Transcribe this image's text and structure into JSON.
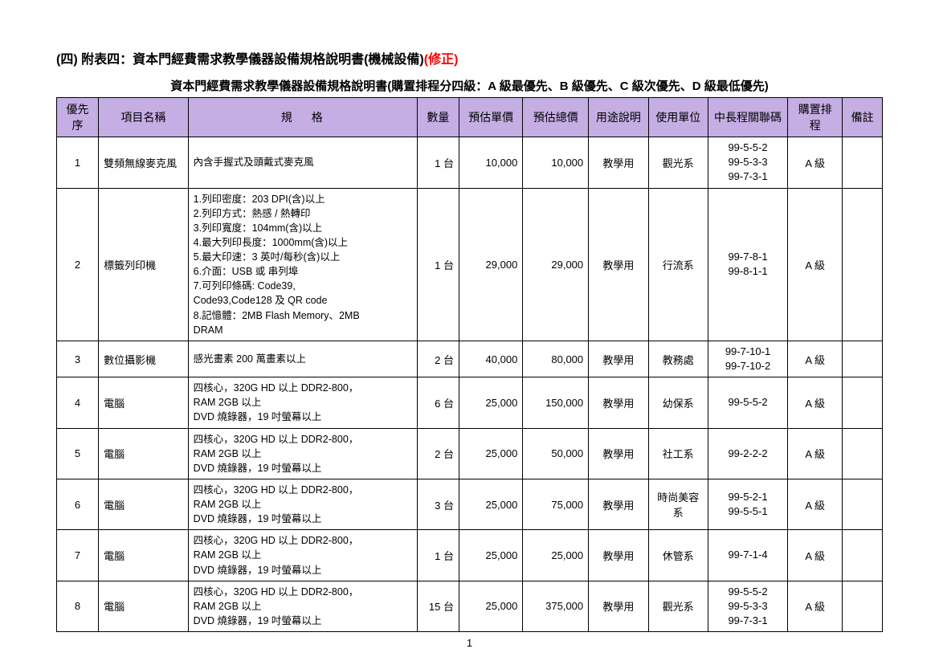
{
  "header": {
    "prefix": "(四) 附表四：資本門經費需求教學儀器設備規格說明書(機械設備)",
    "correction": "(修正)"
  },
  "caption": "資本門經費需求教學儀器設備規格說明書(購置排程分四級：A 級最優先、B 級優先、C 級次優先、D 級最低優先)",
  "columns": {
    "c0": "優先序",
    "c1": "項目名稱",
    "c2": "規格",
    "c3": "數量",
    "c4": "預估單價",
    "c5": "預估總價",
    "c6": "用途說明",
    "c7": "使用單位",
    "c8": "中長程關聯碼",
    "c9": "購置排程",
    "c10": "備註"
  },
  "col_widths": [
    "42px",
    "90px",
    "230px",
    "42px",
    "64px",
    "66px",
    "60px",
    "60px",
    "80px",
    "55px",
    "40px"
  ],
  "header_bg": "#c5aee4",
  "rows": [
    {
      "num": "1",
      "name": "雙頻無線麥克風",
      "spec": [
        "內含手握式及頭戴式麥克風"
      ],
      "qty": "1 台",
      "unit_price": "10,000",
      "total": "10,000",
      "purpose": "教學用",
      "dept": "觀光系",
      "codes": [
        "99-5-5-2",
        "99-5-3-3",
        "99-7-3-1"
      ],
      "level": "A 級",
      "remark": ""
    },
    {
      "num": "2",
      "name": "標籤列印機",
      "spec": [
        "1.列印密度：203 DPI(含)以上",
        "2.列印方式：熱感 / 熱轉印",
        "3.列印寬度：104mm(含)以上",
        "4.最大列印長度：1000mm(含)以上",
        "5.最大印速：3 英吋/每秒(含)以上",
        "6.介面：USB 或 串列埠",
        "7.可列印條碼: Code39,",
        "  Code93,Code128 及 QR code",
        "8.記憶體：2MB Flash Memory、2MB",
        "  DRAM"
      ],
      "qty": "1 台",
      "unit_price": "29,000",
      "total": "29,000",
      "purpose": "教學用",
      "dept": "行流系",
      "codes": [
        "99-7-8-1",
        "99-8-1-1"
      ],
      "level": "A 級",
      "remark": ""
    },
    {
      "num": "3",
      "name": "數位攝影機",
      "spec": [
        "感光畫素 200 萬畫素以上"
      ],
      "qty": "2 台",
      "unit_price": "40,000",
      "total": "80,000",
      "purpose": "教學用",
      "dept": "教務處",
      "codes": [
        "99-7-10-1",
        "99-7-10-2"
      ],
      "level": "A 級",
      "remark": ""
    },
    {
      "num": "4",
      "name": "電腦",
      "spec": [
        "四核心，320G HD 以上 DDR2-800，",
        "RAM 2GB 以上",
        "DVD 燒錄器，19 吋螢幕以上"
      ],
      "qty": "6 台",
      "unit_price": "25,000",
      "total": "150,000",
      "purpose": "教學用",
      "dept": "幼保系",
      "codes": [
        "99-5-5-2"
      ],
      "level": "A 級",
      "remark": ""
    },
    {
      "num": "5",
      "name": "電腦",
      "spec": [
        "四核心，320G HD 以上 DDR2-800，",
        "RAM 2GB 以上",
        "DVD 燒錄器，19 吋螢幕以上"
      ],
      "qty": "2 台",
      "unit_price": "25,000",
      "total": "50,000",
      "purpose": "教學用",
      "dept": "社工系",
      "codes": [
        "99-2-2-2"
      ],
      "level": "A 級",
      "remark": ""
    },
    {
      "num": "6",
      "name": "電腦",
      "spec": [
        "四核心，320G HD 以上 DDR2-800，",
        "RAM 2GB 以上",
        "DVD 燒錄器，19 吋螢幕以上"
      ],
      "qty": "3 台",
      "unit_price": "25,000",
      "total": "75,000",
      "purpose": "教學用",
      "dept": "時尚美容系",
      "codes": [
        "99-5-2-1",
        "99-5-5-1"
      ],
      "level": "A 級",
      "remark": ""
    },
    {
      "num": "7",
      "name": "電腦",
      "spec": [
        "四核心，320G HD 以上 DDR2-800，",
        "RAM 2GB 以上",
        "DVD 燒錄器，19 吋螢幕以上"
      ],
      "qty": "1 台",
      "unit_price": "25,000",
      "total": "25,000",
      "purpose": "教學用",
      "dept": "休管系",
      "codes": [
        "99-7-1-4"
      ],
      "level": "A 級",
      "remark": ""
    },
    {
      "num": "8",
      "name": "電腦",
      "spec": [
        "四核心，320G HD 以上 DDR2-800，",
        "RAM 2GB 以上",
        "DVD 燒錄器，19 吋螢幕以上"
      ],
      "qty": "15 台",
      "unit_price": "25,000",
      "total": "375,000",
      "purpose": "教學用",
      "dept": "觀光系",
      "codes": [
        "99-5-5-2",
        "99-5-3-3",
        "99-7-3-1"
      ],
      "level": "A 級",
      "remark": ""
    }
  ],
  "page_number": "1"
}
